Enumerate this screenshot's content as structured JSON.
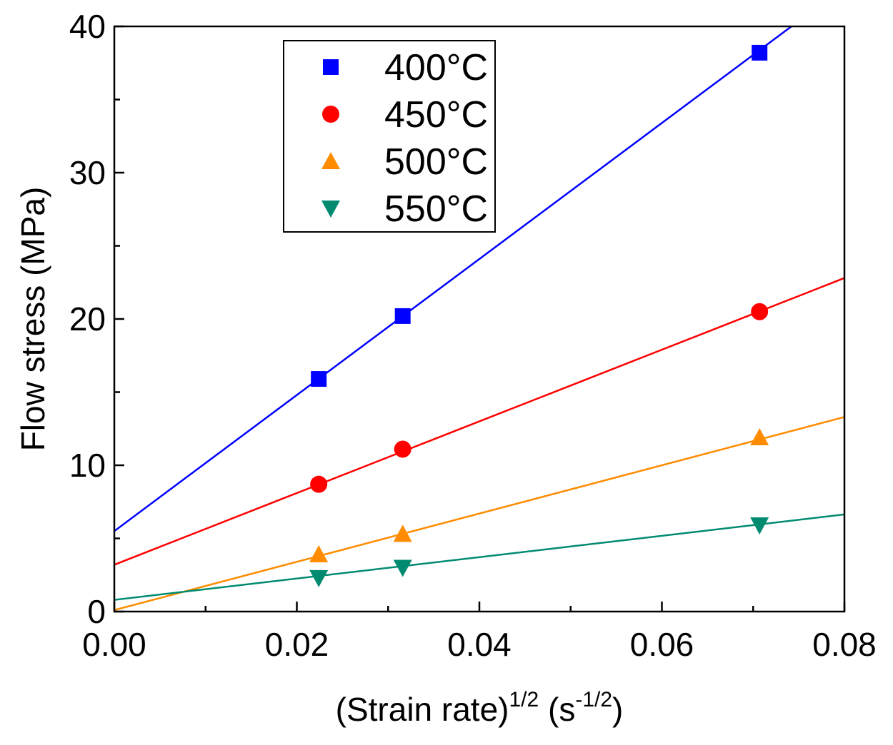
{
  "chart_data": {
    "type": "scatter",
    "title": "",
    "xlabel": "(Strain rate)",
    "xlabel_sup": "1/2",
    "xlabel_unit_open": " (s",
    "xlabel_unit_sup": "-1/2",
    "xlabel_unit_close": ")",
    "ylabel": "Flow stress (MPa)",
    "xlim": [
      0,
      0.08
    ],
    "ylim": [
      0,
      40
    ],
    "xticks": [
      0.0,
      0.02,
      0.04,
      0.06,
      0.08
    ],
    "xtick_labels": [
      "0.00",
      "0.02",
      "0.04",
      "0.06",
      "0.08"
    ],
    "xminor": [
      0.01,
      0.03,
      0.05,
      0.07
    ],
    "yticks": [
      0,
      10,
      20,
      30,
      40
    ],
    "ytick_labels": [
      "0",
      "10",
      "20",
      "30",
      "40"
    ],
    "yminor": [
      5,
      15,
      25,
      35
    ],
    "grid": false,
    "legend_position": "top-left",
    "series": [
      {
        "name": "400°C",
        "marker": "square",
        "color": "#0000ff",
        "x": [
          0.0224,
          0.0316,
          0.0707
        ],
        "y": [
          15.9,
          20.2,
          38.2
        ],
        "fit": {
          "intercept": 5.5,
          "slope": 465
        }
      },
      {
        "name": "450°C",
        "marker": "circle",
        "color": "#ff0000",
        "x": [
          0.0224,
          0.0316,
          0.0707
        ],
        "y": [
          8.7,
          11.1,
          20.5
        ],
        "fit": {
          "intercept": 3.2,
          "slope": 245
        }
      },
      {
        "name": "500°C",
        "marker": "triangle-up",
        "color": "#ff8c00",
        "x": [
          0.0224,
          0.0316,
          0.0707
        ],
        "y": [
          3.9,
          5.3,
          11.9
        ],
        "fit": {
          "intercept": 0.1,
          "slope": 165
        }
      },
      {
        "name": "550°C",
        "marker": "triangle-down",
        "color": "#008b70",
        "x": [
          0.0224,
          0.0316,
          0.0707
        ],
        "y": [
          2.3,
          3.0,
          5.9
        ],
        "fit": {
          "intercept": 0.8,
          "slope": 73
        }
      }
    ]
  }
}
